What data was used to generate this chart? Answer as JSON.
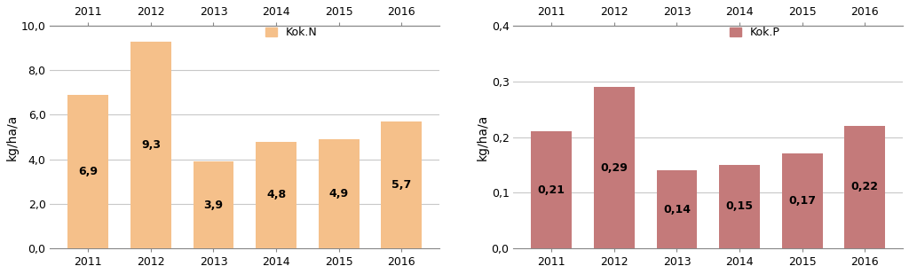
{
  "years": [
    "2011",
    "2012",
    "2013",
    "2014",
    "2015",
    "2016"
  ],
  "kokN_values": [
    6.9,
    9.3,
    3.9,
    4.8,
    4.9,
    5.7
  ],
  "kokP_values": [
    0.21,
    0.29,
    0.14,
    0.15,
    0.17,
    0.22
  ],
  "kokN_color": "#F5C08A",
  "kokP_color": "#C47A7A",
  "kokN_label": "Kok.N",
  "kokP_label": "Kok.P",
  "ylabel": "kg/ha/a",
  "kokN_ylim": [
    0,
    10.0
  ],
  "kokN_yticks": [
    0.0,
    2.0,
    4.0,
    6.0,
    8.0,
    10.0
  ],
  "kokN_ytick_labels": [
    "0,0",
    "2,0",
    "4,0",
    "6,0",
    "8,0",
    "10,0"
  ],
  "kokP_ylim": [
    0,
    0.4
  ],
  "kokP_yticks": [
    0.0,
    0.1,
    0.2,
    0.3,
    0.4
  ],
  "kokP_ytick_labels": [
    "0,0",
    "0,1",
    "0,2",
    "0,3",
    "0,4"
  ],
  "bg_color": "#FFFFFF",
  "grid_color": "#C8C8C8",
  "tick_fontsize": 9,
  "ylabel_fontsize": 10,
  "legend_fontsize": 9,
  "value_fontsize": 9
}
